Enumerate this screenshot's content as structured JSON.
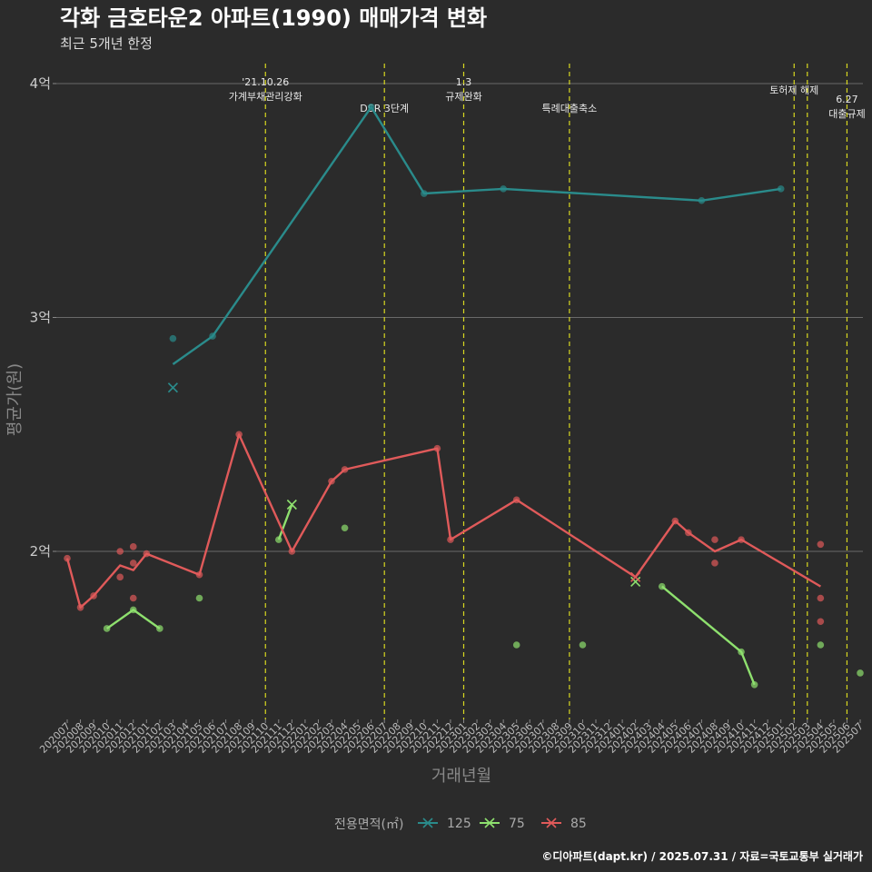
{
  "chart_data": {
    "type": "line",
    "title": "각화 금호타운2 아파트(1990) 매매가격 변화",
    "subtitle": "최근 5개년 한정",
    "xlabel": "거래년월",
    "ylabel": "평균가(원)",
    "x_categories": [
      "202007",
      "202008",
      "202009",
      "202010",
      "202011",
      "202012",
      "202101",
      "202102",
      "202103",
      "202104",
      "202105",
      "202106",
      "202107",
      "202108",
      "202109",
      "202110",
      "202111",
      "202112",
      "202201",
      "202202",
      "202203",
      "202204",
      "202205",
      "202206",
      "202207",
      "202208",
      "202209",
      "202210",
      "202211",
      "202212",
      "202301",
      "202302",
      "202303",
      "202304",
      "202305",
      "202306",
      "202307",
      "202308",
      "202309",
      "202310",
      "202311",
      "202312",
      "202401",
      "202402",
      "202403",
      "202404",
      "202405",
      "202406",
      "202407",
      "202408",
      "202409",
      "202410",
      "202411",
      "202412",
      "202501",
      "202502",
      "202503",
      "202504",
      "202505",
      "202506",
      "202507"
    ],
    "ylim": [
      1.27,
      4.1
    ],
    "y_ticks": [
      {
        "value": 2,
        "label": "2억"
      },
      {
        "value": 3,
        "label": "3억"
      },
      {
        "value": 4,
        "label": "4억"
      }
    ],
    "grid": true,
    "legend": {
      "title": "전용면적(㎡)",
      "position": "bottom",
      "entries": [
        {
          "name": "125",
          "color": "#2a8b8b"
        },
        {
          "name": "75",
          "color": "#8ee06e"
        },
        {
          "name": "85",
          "color": "#e05a5a"
        }
      ]
    },
    "series": [
      {
        "name": "125",
        "color": "#2a8b8b",
        "line": [
          [
            "202103",
            2.8
          ],
          [
            "202106",
            2.92
          ],
          [
            "202206",
            3.9
          ],
          [
            "202210",
            3.53
          ],
          [
            "202304",
            3.55
          ],
          [
            "202407",
            3.5
          ],
          [
            "202501",
            3.55
          ]
        ],
        "points": [
          [
            "202103",
            2.91
          ],
          [
            "202106",
            2.92
          ],
          [
            "202206",
            3.9
          ],
          [
            "202210",
            3.53
          ],
          [
            "202304",
            3.55
          ],
          [
            "202407",
            3.5
          ],
          [
            "202501",
            3.55
          ]
        ],
        "x_marks": [
          [
            "202103",
            2.7
          ]
        ]
      },
      {
        "name": "75",
        "color": "#8ee06e",
        "line": [
          [
            "202010",
            1.67
          ],
          [
            "202012",
            1.75
          ],
          [
            "202102",
            1.67
          ],
          [
            "202111",
            2.05
          ],
          [
            "202112",
            2.2
          ],
          [
            "202404",
            1.85
          ],
          [
            "202410",
            1.57
          ],
          [
            "202411",
            1.43
          ]
        ],
        "segments": [
          [
            0,
            3
          ],
          [
            3,
            5
          ],
          [
            5,
            8
          ]
        ],
        "points": [
          [
            "202010",
            1.67
          ],
          [
            "202012",
            1.75
          ],
          [
            "202102",
            1.67
          ],
          [
            "202105",
            1.8
          ],
          [
            "202111",
            2.05
          ],
          [
            "202204",
            2.1
          ],
          [
            "202305",
            1.6
          ],
          [
            "202310",
            1.6
          ],
          [
            "202404",
            1.85
          ],
          [
            "202410",
            1.57
          ],
          [
            "202411",
            1.43
          ],
          [
            "202504",
            1.6
          ],
          [
            "202507",
            1.48
          ]
        ],
        "x_marks": [
          [
            "202112",
            2.2
          ],
          [
            "202402",
            1.87
          ]
        ]
      },
      {
        "name": "85",
        "color": "#e05a5a",
        "line": [
          [
            "202007",
            1.97
          ],
          [
            "202008",
            1.76
          ],
          [
            "202009",
            1.81
          ],
          [
            "202011",
            1.94
          ],
          [
            "202012",
            1.92
          ],
          [
            "202101",
            1.99
          ],
          [
            "202105",
            1.9
          ],
          [
            "202108",
            2.5
          ],
          [
            "202112",
            2.0
          ],
          [
            "202203",
            2.3
          ],
          [
            "202204",
            2.35
          ],
          [
            "202211",
            2.44
          ],
          [
            "202212",
            2.05
          ],
          [
            "202305",
            2.22
          ],
          [
            "202402",
            1.89
          ],
          [
            "202405",
            2.13
          ],
          [
            "202406",
            2.08
          ],
          [
            "202408",
            2.0
          ],
          [
            "202410",
            2.05
          ],
          [
            "202504",
            1.85
          ]
        ],
        "points": [
          [
            "202007",
            1.97
          ],
          [
            "202008",
            1.76
          ],
          [
            "202009",
            1.81
          ],
          [
            "202011",
            2.0
          ],
          [
            "202011",
            1.89
          ],
          [
            "202012",
            2.02
          ],
          [
            "202012",
            1.95
          ],
          [
            "202012",
            1.8
          ],
          [
            "202101",
            1.99
          ],
          [
            "202105",
            1.9
          ],
          [
            "202108",
            2.5
          ],
          [
            "202112",
            2.0
          ],
          [
            "202203",
            2.3
          ],
          [
            "202204",
            2.35
          ],
          [
            "202211",
            2.44
          ],
          [
            "202212",
            2.05
          ],
          [
            "202305",
            2.22
          ],
          [
            "202405",
            2.13
          ],
          [
            "202406",
            2.08
          ],
          [
            "202408",
            2.05
          ],
          [
            "202408",
            1.95
          ],
          [
            "202410",
            2.05
          ],
          [
            "202504",
            2.03
          ],
          [
            "202504",
            1.8
          ],
          [
            "202504",
            1.7
          ]
        ],
        "x_marks": [
          [
            "202402",
            1.89
          ]
        ]
      }
    ],
    "events": [
      {
        "x": 15.0,
        "lines": [
          "'21.10.26",
          "가계부채관리강화"
        ],
        "tier": 1
      },
      {
        "x": 24.0,
        "lines": [
          "DSR 3단계"
        ],
        "tier": 3
      },
      {
        "x": 30.0,
        "lines": [
          "1.3",
          "규제완화"
        ],
        "tier": 1
      },
      {
        "x": 38.0,
        "lines": [
          "특례대출축소"
        ],
        "tier": 3
      },
      {
        "x": 55.0,
        "lines": [
          "토허제 해제"
        ],
        "tier": 2
      },
      {
        "x": 56.0,
        "lines": [],
        "tier": 0
      },
      {
        "x": 59.0,
        "lines": [
          "6.27",
          "대출규제"
        ],
        "tier": 4
      }
    ]
  },
  "footer": "©디아파트(dapt.kr) / 2025.07.31 / 자료=국토교통부 실거래가"
}
